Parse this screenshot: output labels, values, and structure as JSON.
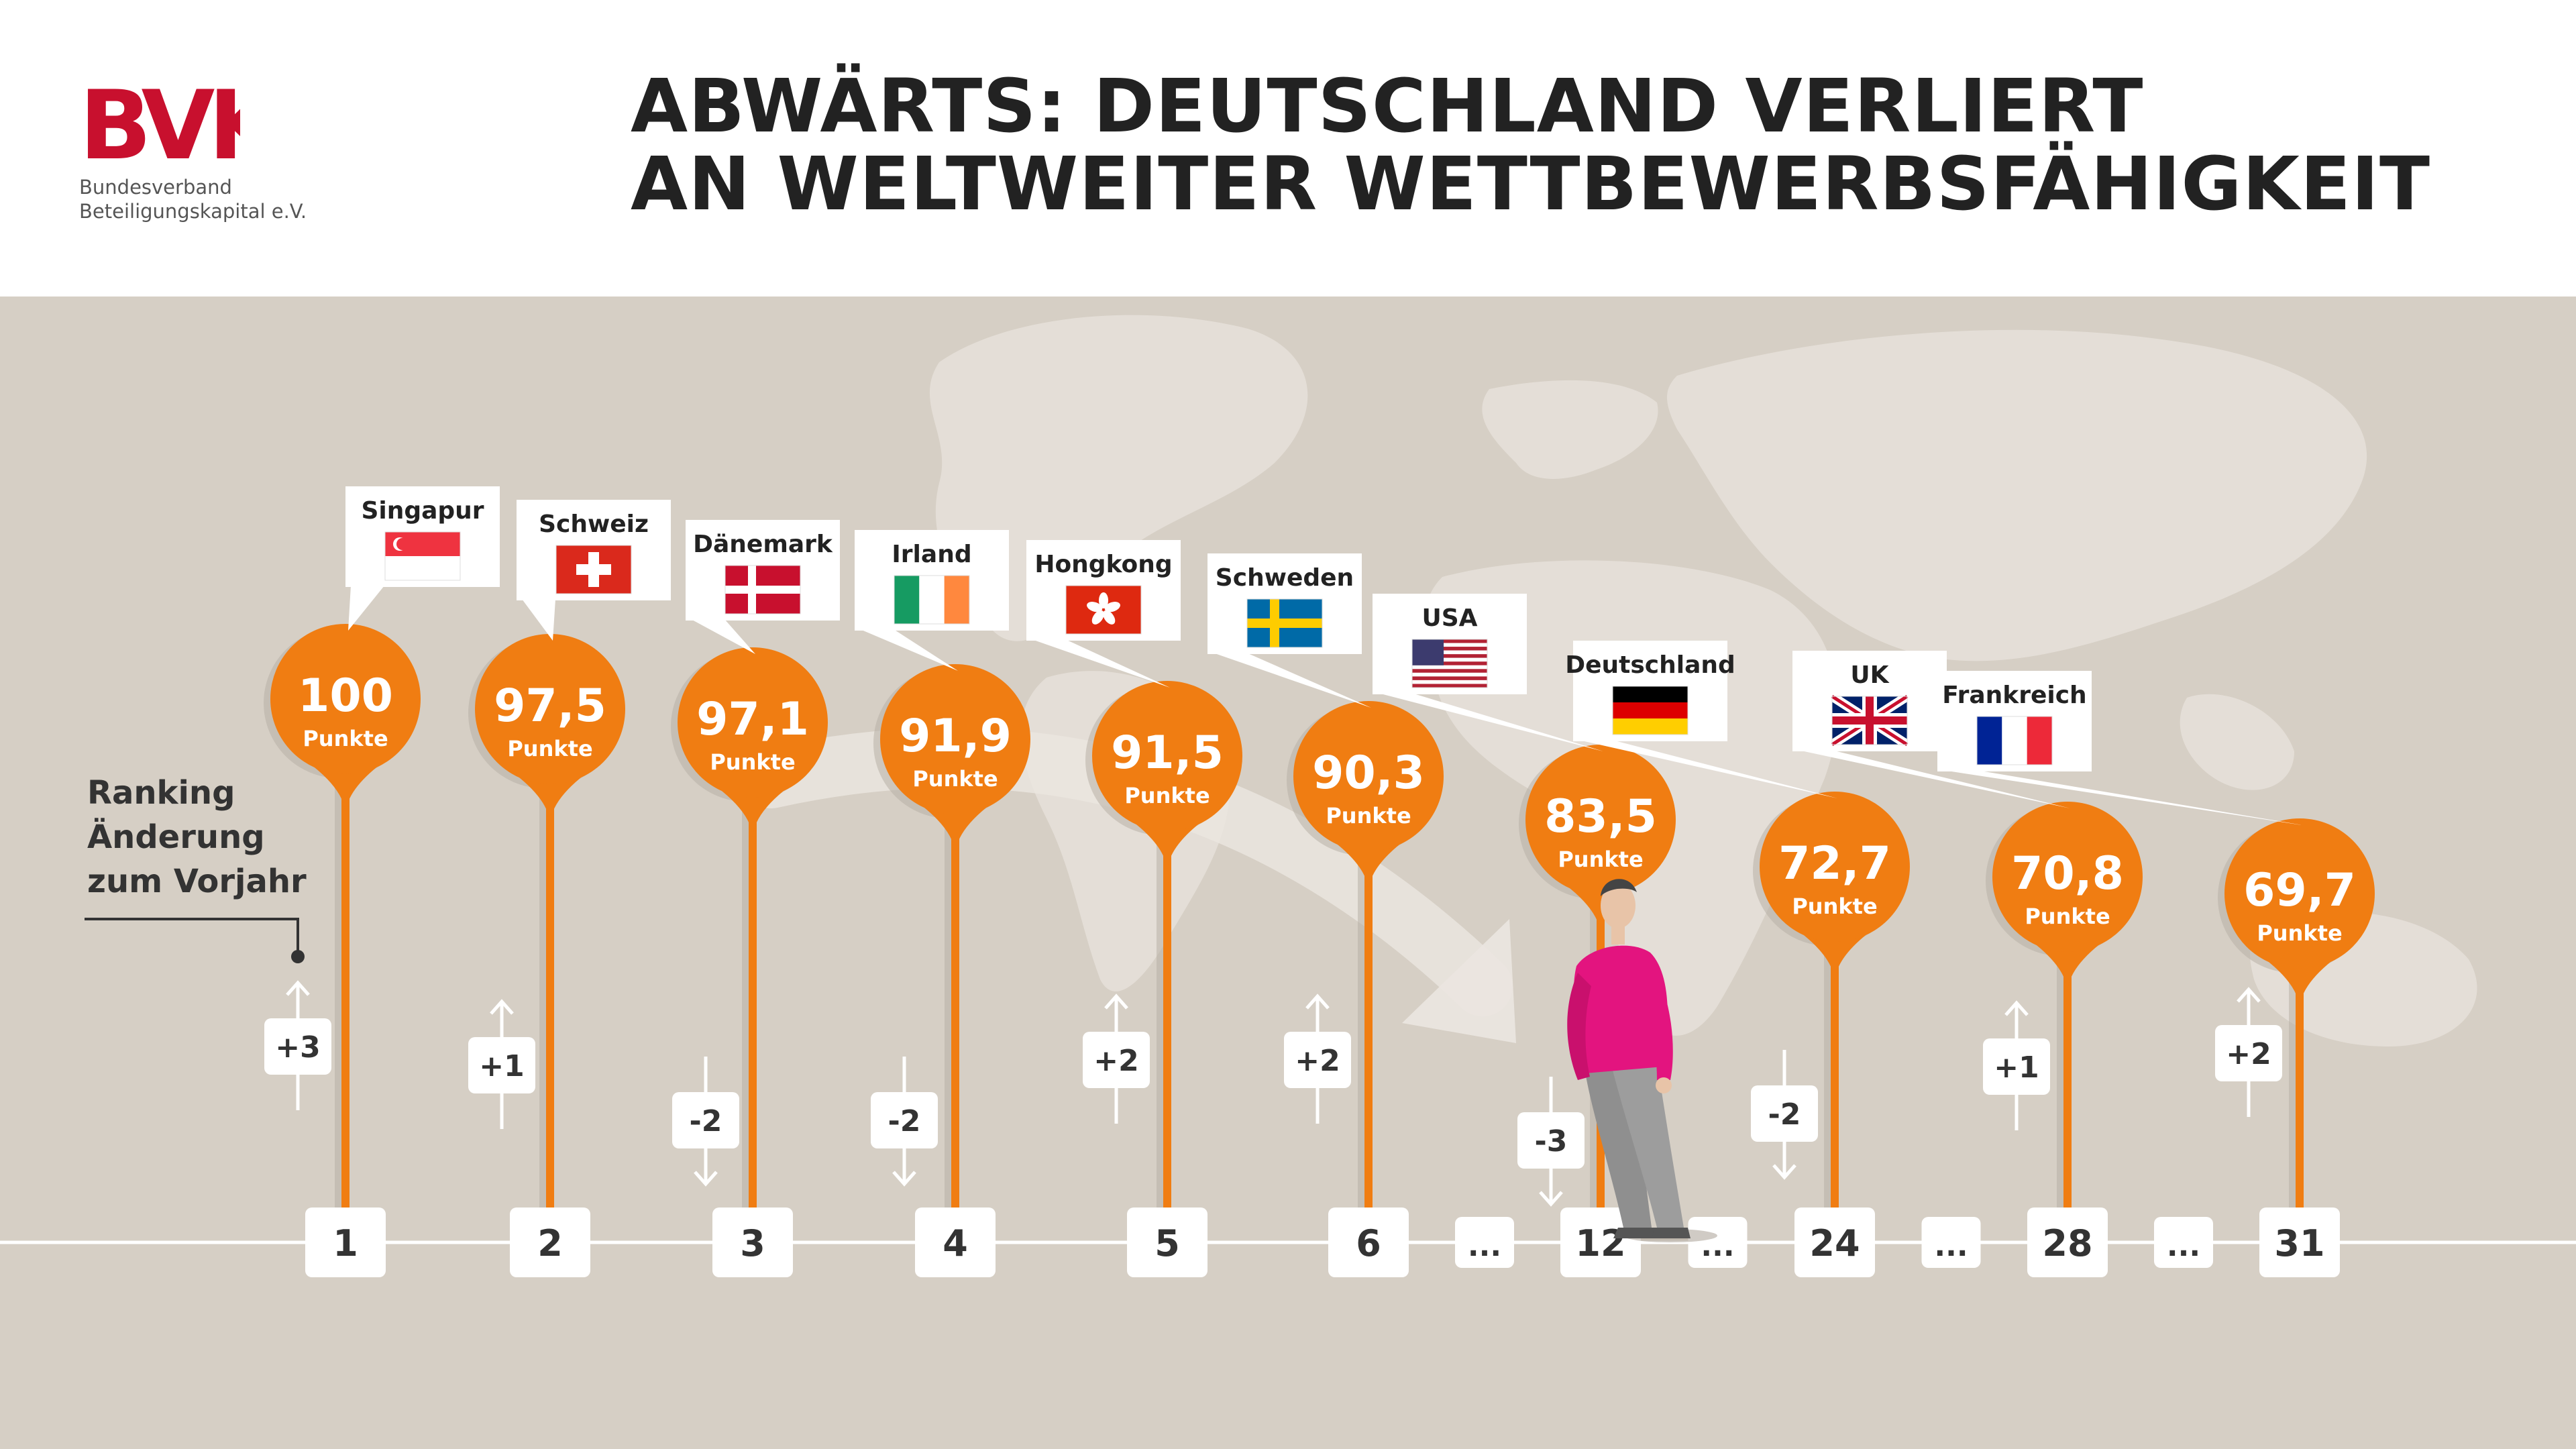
{
  "header": {
    "logo": {
      "wordmark": "BVK",
      "line1": "Bundesverband",
      "line2": "Beteiligungskapital e.V."
    },
    "title_line1": "ABWÄRTS: DEUTSCHLAND VERLIERT",
    "title_line2": "AN WELTWEITER WETTBEWERBSFÄHIGKEIT"
  },
  "legend": {
    "line1": "Ranking",
    "line2": "Änderung",
    "line3": "zum Vorjahr"
  },
  "colors": {
    "orange": "#f07d12",
    "background": "#d6cfc5",
    "map": "#e6e0d9",
    "text_dark": "#333333",
    "person_shirt": "#e3147f",
    "person_trousers": "#8f8f8f"
  },
  "chart_data": {
    "type": "ranking",
    "unit_label": "Punkte",
    "ellipsis": "...",
    "countries": [
      {
        "name": "Singapur",
        "flag": "singapore",
        "rank": 1,
        "points": 100,
        "points_label": "100",
        "change": 3,
        "change_label": "+3"
      },
      {
        "name": "Schweiz",
        "flag": "switzerland",
        "rank": 2,
        "points": 97.5,
        "points_label": "97,5",
        "change": 1,
        "change_label": "+1"
      },
      {
        "name": "Dänemark",
        "flag": "denmark",
        "rank": 3,
        "points": 97.1,
        "points_label": "97,1",
        "change": -2,
        "change_label": "-2"
      },
      {
        "name": "Irland",
        "flag": "ireland",
        "rank": 4,
        "points": 91.9,
        "points_label": "91,9",
        "change": -2,
        "change_label": "-2"
      },
      {
        "name": "Hongkong",
        "flag": "hongkong",
        "rank": 5,
        "points": 91.5,
        "points_label": "91,5",
        "change": 2,
        "change_label": "+2"
      },
      {
        "name": "Schweden",
        "flag": "sweden",
        "rank": 6,
        "points": 90.3,
        "points_label": "90,3",
        "change": 2,
        "change_label": "+2"
      },
      {
        "name": "USA",
        "flag": "usa",
        "rank": 12,
        "points": 83.5,
        "points_label": "83,5",
        "change": -3,
        "change_label": "-3"
      },
      {
        "name": "Deutschland",
        "flag": "germany",
        "rank": 24,
        "points": 72.7,
        "points_label": "72,7",
        "change": -2,
        "change_label": "-2"
      },
      {
        "name": "UK",
        "flag": "uk",
        "rank": 28,
        "points": 70.8,
        "points_label": "70,8",
        "change": 1,
        "change_label": "+1"
      },
      {
        "name": "Frankreich",
        "flag": "france",
        "rank": 31,
        "points": 69.7,
        "points_label": "69,7",
        "change": 2,
        "change_label": "+2"
      }
    ]
  }
}
